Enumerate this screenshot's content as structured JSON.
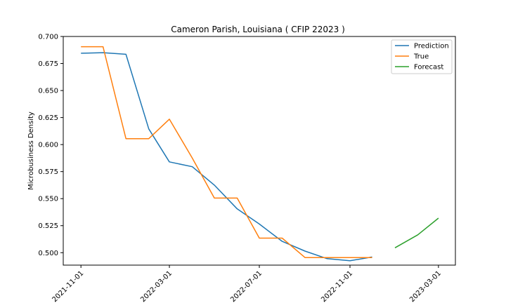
{
  "chart_data": {
    "type": "line",
    "title": "Cameron Parish, Louisiana ( CFIP 22023 )",
    "xlabel": "",
    "ylabel": "Microbusiness Density",
    "x_ticks": [
      "2021-11-01",
      "2022-03-01",
      "2022-07-01",
      "2022-11-01",
      "2023-03-01"
    ],
    "y_ticks": [
      "0.500",
      "0.525",
      "0.550",
      "0.575",
      "0.600",
      "0.625",
      "0.650",
      "0.675",
      "0.700"
    ],
    "ylim": [
      0.4885,
      0.7
    ],
    "xlim": [
      "2021-10-08",
      "2023-03-24"
    ],
    "grid": false,
    "legend_position": "top-right",
    "series": [
      {
        "name": "Prediction",
        "color": "#1f77b4",
        "points": [
          {
            "x": "2021-11-01",
            "y": 0.6845
          },
          {
            "x": "2021-12-01",
            "y": 0.685
          },
          {
            "x": "2022-01-01",
            "y": 0.6835
          },
          {
            "x": "2022-02-01",
            "y": 0.6145
          },
          {
            "x": "2022-03-01",
            "y": 0.584
          },
          {
            "x": "2022-04-01",
            "y": 0.5795
          },
          {
            "x": "2022-05-01",
            "y": 0.5625
          },
          {
            "x": "2022-06-01",
            "y": 0.5405
          },
          {
            "x": "2022-07-01",
            "y": 0.5265
          },
          {
            "x": "2022-08-01",
            "y": 0.5105
          },
          {
            "x": "2022-09-01",
            "y": 0.5015
          },
          {
            "x": "2022-10-01",
            "y": 0.4945
          },
          {
            "x": "2022-11-01",
            "y": 0.4925
          },
          {
            "x": "2022-12-01",
            "y": 0.496
          }
        ]
      },
      {
        "name": "True",
        "color": "#ff7f0e",
        "points": [
          {
            "x": "2021-11-01",
            "y": 0.6905
          },
          {
            "x": "2021-12-01",
            "y": 0.6905
          },
          {
            "x": "2022-01-01",
            "y": 0.6055
          },
          {
            "x": "2022-02-01",
            "y": 0.6055
          },
          {
            "x": "2022-03-01",
            "y": 0.6235
          },
          {
            "x": "2022-04-01",
            "y": 0.5875
          },
          {
            "x": "2022-05-01",
            "y": 0.5505
          },
          {
            "x": "2022-06-01",
            "y": 0.5505
          },
          {
            "x": "2022-07-01",
            "y": 0.5135
          },
          {
            "x": "2022-08-01",
            "y": 0.5135
          },
          {
            "x": "2022-09-01",
            "y": 0.4955
          },
          {
            "x": "2022-10-01",
            "y": 0.4955
          },
          {
            "x": "2022-11-01",
            "y": 0.4955
          },
          {
            "x": "2022-12-01",
            "y": 0.4955
          }
        ]
      },
      {
        "name": "Forecast",
        "color": "#2ca02c",
        "points": [
          {
            "x": "2023-01-01",
            "y": 0.5045
          },
          {
            "x": "2023-02-01",
            "y": 0.5165
          },
          {
            "x": "2023-03-01",
            "y": 0.532
          }
        ]
      }
    ]
  }
}
